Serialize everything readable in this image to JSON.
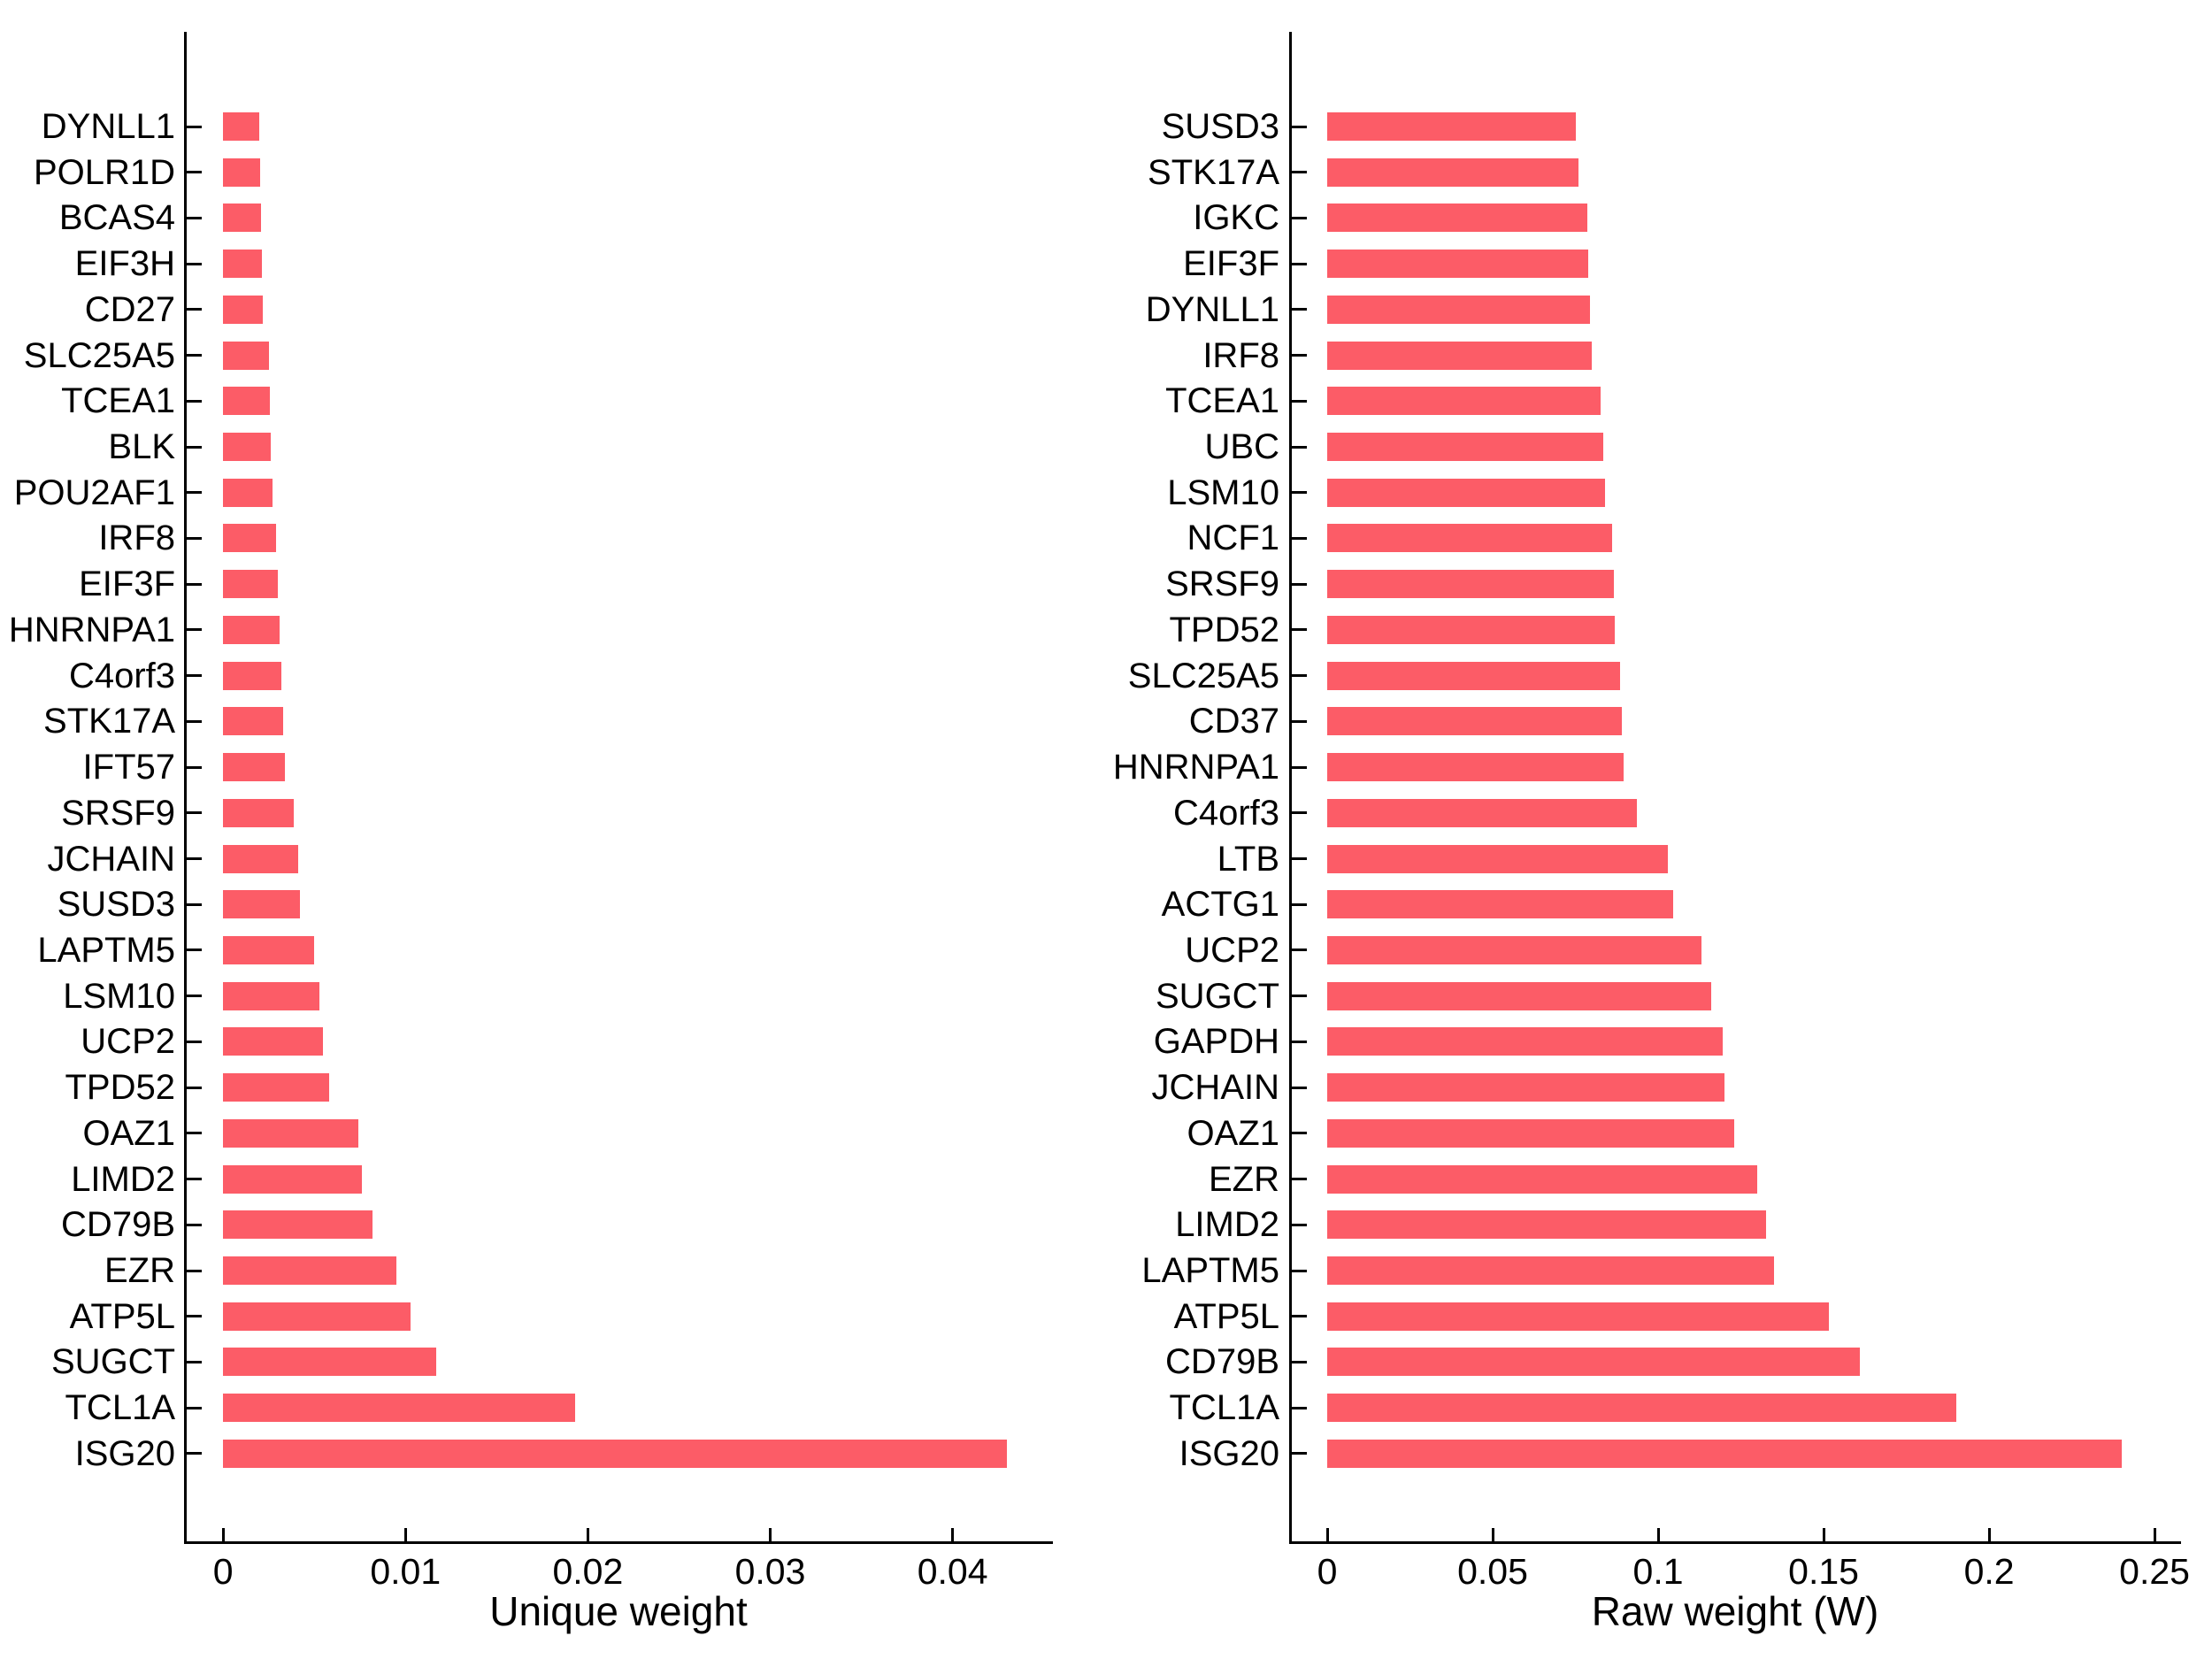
{
  "figure": {
    "background": "#ffffff",
    "bar_color": "#fc5c67",
    "axis_color": "#000000",
    "text_color": "#000000"
  },
  "chart_data": [
    {
      "type": "bar",
      "orientation": "horizontal",
      "xlabel": "Unique weight",
      "ylabel": "",
      "grid": false,
      "legend": null,
      "categories": [
        "DYNLL1",
        "POLR1D",
        "BCAS4",
        "EIF3H",
        "CD27",
        "SLC25A5",
        "TCEA1",
        "BLK",
        "POU2AF1",
        "IRF8",
        "EIF3F",
        "HNRNPA1",
        "C4orf3",
        "STK17A",
        "IFT57",
        "SRSF9",
        "JCHAIN",
        "SUSD3",
        "LAPTM5",
        "LSM10",
        "UCP2",
        "TPD52",
        "OAZ1",
        "LIMD2",
        "CD79B",
        "EZR",
        "ATP5L",
        "SUGCT",
        "TCL1A",
        "ISG20"
      ],
      "values": [
        0.002,
        0.00205,
        0.0021,
        0.00215,
        0.0022,
        0.0025,
        0.00255,
        0.0026,
        0.0027,
        0.0029,
        0.003,
        0.0031,
        0.0032,
        0.0033,
        0.0034,
        0.0039,
        0.0041,
        0.0042,
        0.005,
        0.0053,
        0.0055,
        0.0058,
        0.0074,
        0.0076,
        0.0082,
        0.0095,
        0.0103,
        0.0117,
        0.0193,
        0.043
      ],
      "xticks": [
        0,
        0.01,
        0.02,
        0.03,
        0.04
      ],
      "xtick_labels": [
        "0",
        "0.01",
        "0.02",
        "0.03",
        "0.04"
      ],
      "xlim": [
        -0.00214,
        0.0455
      ]
    },
    {
      "type": "bar",
      "orientation": "horizontal",
      "xlabel": "Raw weight (W)",
      "ylabel": "",
      "grid": false,
      "legend": null,
      "categories": [
        "SUSD3",
        "STK17A",
        "IGKC",
        "EIF3F",
        "DYNLL1",
        "IRF8",
        "TCEA1",
        "UBC",
        "LSM10",
        "NCF1",
        "SRSF9",
        "TPD52",
        "SLC25A5",
        "CD37",
        "HNRNPA1",
        "C4orf3",
        "LTB",
        "ACTG1",
        "UCP2",
        "SUGCT",
        "GAPDH",
        "JCHAIN",
        "OAZ1",
        "EZR",
        "LIMD2",
        "LAPTM5",
        "ATP5L",
        "CD79B",
        "TCL1A",
        "ISG20"
      ],
      "values": [
        0.075,
        0.076,
        0.0785,
        0.079,
        0.0795,
        0.08,
        0.0825,
        0.0835,
        0.084,
        0.086,
        0.0865,
        0.087,
        0.0885,
        0.089,
        0.0895,
        0.0935,
        0.103,
        0.1045,
        0.113,
        0.116,
        0.1195,
        0.12,
        0.123,
        0.13,
        0.1325,
        0.135,
        0.1515,
        0.161,
        0.19,
        0.24
      ],
      "xticks": [
        0,
        0.05,
        0.1,
        0.15,
        0.2,
        0.25
      ],
      "xtick_labels": [
        "0",
        "0.05",
        "0.1",
        "0.15",
        "0.2",
        "0.25"
      ],
      "xlim": [
        -0.0115,
        0.258
      ]
    }
  ]
}
